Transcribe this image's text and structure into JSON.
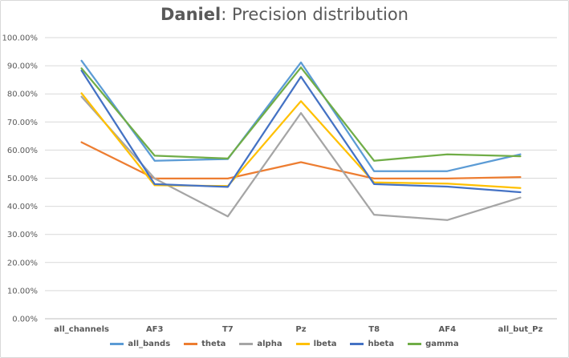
{
  "title": {
    "bold_part": "Daniel",
    "rest": ": Precision distribution"
  },
  "chart_data": {
    "type": "line",
    "title": "Daniel: Precision distribution",
    "categories": [
      "all_channels",
      "AF3",
      "T7",
      "Pz",
      "T8",
      "AF4",
      "all_but_Pz"
    ],
    "y_ticks": [
      "0.00%",
      "10.00%",
      "20.00%",
      "30.00%",
      "40.00%",
      "50.00%",
      "60.00%",
      "70.00%",
      "80.00%",
      "90.00%",
      "100.00%"
    ],
    "ylim": [
      0,
      100
    ],
    "grid": true,
    "legend_position": "bottom",
    "series": [
      {
        "name": "all_bands",
        "color": "#5B9BD5",
        "values": [
          91.8,
          56.2,
          56.8,
          91.2,
          52.5,
          52.5,
          58.5
        ]
      },
      {
        "name": "theta",
        "color": "#ED7D31",
        "values": [
          62.8,
          49.9,
          49.9,
          55.7,
          49.9,
          49.9,
          50.4
        ]
      },
      {
        "name": "alpha",
        "color": "#A5A5A5",
        "values": [
          79.0,
          49.9,
          36.4,
          73.2,
          37.0,
          35.1,
          43.1
        ]
      },
      {
        "name": "lbeta",
        "color": "#FFC000",
        "values": [
          80.2,
          47.5,
          47.2,
          77.4,
          48.5,
          48.1,
          46.5
        ]
      },
      {
        "name": "hbeta",
        "color": "#4472C4",
        "values": [
          88.3,
          47.9,
          46.9,
          86.1,
          47.9,
          47.0,
          45.0
        ]
      },
      {
        "name": "gamma",
        "color": "#70AD47",
        "values": [
          89.1,
          58.0,
          57.0,
          89.4,
          56.2,
          58.5,
          57.8
        ]
      }
    ]
  }
}
